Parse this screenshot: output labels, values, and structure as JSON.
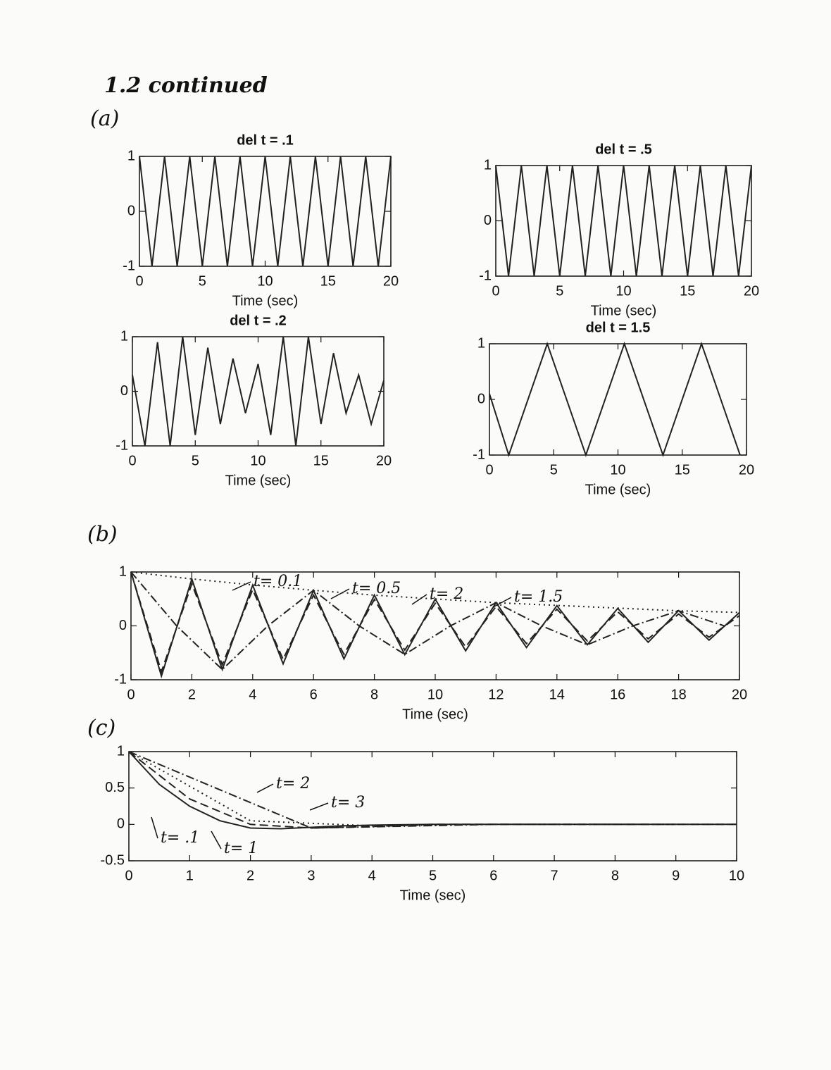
{
  "header": {
    "title": "1.2 continued"
  },
  "sections": [
    "(a)",
    "(b)",
    "(c)"
  ],
  "chart_data": [
    {
      "type": "line",
      "title": "del t = .1",
      "xlabel": "Time (sec)",
      "xlim": [
        0,
        20
      ],
      "ylim": [
        -1,
        1
      ],
      "xticks": [
        0,
        5,
        10,
        15,
        20
      ],
      "yticks": [
        -1,
        0,
        1
      ],
      "series": [
        {
          "style": "solid",
          "color": "#222222",
          "x": [
            0,
            0.5,
            1,
            1.5,
            2,
            2.5,
            3,
            3.5,
            4,
            4.5,
            5,
            5.5,
            6,
            6.5,
            7,
            7.5,
            8,
            8.5,
            9,
            9.5,
            10,
            10.5,
            11,
            11.5,
            12,
            12.5,
            13,
            13.5,
            14,
            14.5,
            15,
            15.5,
            16,
            16.5,
            17,
            17.5,
            18,
            18.5,
            19,
            19.5,
            20
          ],
          "values": [
            1,
            0,
            -1,
            0,
            1,
            0,
            -1,
            0,
            1,
            0,
            -1,
            0,
            1,
            0,
            -1,
            0,
            1,
            0,
            -1,
            0,
            1,
            0,
            -1,
            0,
            1,
            0,
            -1,
            0,
            1,
            0,
            -1,
            0,
            1,
            0,
            -1,
            0,
            1,
            0,
            -1,
            0,
            1
          ]
        }
      ]
    },
    {
      "type": "line",
      "title": "del t = .5",
      "xlabel": "Time (sec)",
      "xlim": [
        0,
        20
      ],
      "ylim": [
        -1,
        1
      ],
      "xticks": [
        0,
        5,
        10,
        15,
        20
      ],
      "yticks": [
        -1,
        0,
        1
      ],
      "series": [
        {
          "style": "solid",
          "color": "#222222",
          "x": [
            0,
            0.5,
            1,
            1.5,
            2,
            2.5,
            3,
            3.5,
            4,
            4.5,
            5,
            5.5,
            6,
            6.5,
            7,
            7.5,
            8,
            8.5,
            9,
            9.5,
            10,
            10.5,
            11,
            11.5,
            12,
            12.5,
            13,
            13.5,
            14,
            14.5,
            15,
            15.5,
            16,
            16.5,
            17,
            17.5,
            18,
            18.5,
            19,
            19.5,
            20
          ],
          "values": [
            1,
            0,
            -1,
            0,
            1,
            0,
            -1,
            0,
            1,
            0,
            -1,
            0,
            1,
            0,
            -1,
            0,
            1,
            0,
            -1,
            0,
            1,
            0,
            -1,
            0,
            1,
            0,
            -1,
            0,
            1,
            0,
            -1,
            0,
            1,
            0,
            -1,
            0,
            1,
            0,
            -1,
            0,
            1
          ]
        }
      ]
    },
    {
      "type": "line",
      "title": "del t = .2",
      "xlabel": "Time (sec)",
      "xlim": [
        0,
        20
      ],
      "ylim": [
        -1,
        1
      ],
      "xticks": [
        0,
        5,
        10,
        15,
        20
      ],
      "yticks": [
        -1,
        0,
        1
      ],
      "series": [
        {
          "style": "solid",
          "color": "#222222",
          "x": [
            0,
            1,
            2,
            3,
            4,
            5,
            6,
            7,
            8,
            9,
            10,
            11,
            12,
            13,
            14,
            15,
            16,
            17,
            18,
            19,
            20
          ],
          "values": [
            0.3,
            -1,
            0.9,
            -1,
            1,
            -0.8,
            0.8,
            -0.6,
            0.6,
            -0.4,
            0.5,
            -0.8,
            1,
            -1,
            1,
            -0.6,
            0.7,
            -0.4,
            0.3,
            -0.6,
            0.2
          ]
        }
      ]
    },
    {
      "type": "line",
      "title": "del t = 1.5",
      "xlabel": "Time (sec)",
      "xlim": [
        0,
        20
      ],
      "ylim": [
        -1,
        1
      ],
      "xticks": [
        0,
        5,
        10,
        15,
        20
      ],
      "yticks": [
        -1,
        0,
        1
      ],
      "series": [
        {
          "style": "solid",
          "color": "#222222",
          "x": [
            0,
            1.5,
            4.5,
            7.5,
            10.5,
            13.5,
            16.5,
            19.5
          ],
          "values": [
            0.1,
            -1,
            1,
            -1,
            1,
            -1,
            1,
            -1
          ]
        }
      ]
    },
    {
      "type": "line",
      "xlabel": "Time (sec)",
      "xlim": [
        0,
        20
      ],
      "ylim": [
        -1,
        1
      ],
      "xticks": [
        0,
        2,
        4,
        6,
        8,
        10,
        12,
        14,
        16,
        18,
        20
      ],
      "yticks": [
        -1,
        0,
        1
      ],
      "series": [
        {
          "name": "t= 0.1",
          "style": "solid",
          "color": "#222222",
          "x": [
            0,
            1,
            2,
            3,
            4,
            5,
            6,
            7,
            8,
            9,
            10,
            11,
            12,
            13,
            14,
            15,
            16,
            17,
            18,
            19,
            20
          ],
          "values": [
            1,
            -0.932,
            0.869,
            -0.811,
            0.756,
            -0.705,
            0.657,
            -0.613,
            0.571,
            -0.533,
            0.497,
            -0.463,
            0.432,
            -0.403,
            0.375,
            -0.35,
            0.326,
            -0.304,
            0.284,
            -0.264,
            0.247
          ]
        },
        {
          "name": "t= 0.5",
          "style": "dashed",
          "color": "#222222",
          "x": [
            0,
            1,
            2,
            3,
            4,
            5,
            6,
            7,
            8,
            9,
            10,
            11,
            12,
            13,
            14,
            15,
            16,
            17,
            18,
            19,
            20
          ],
          "values": [
            1,
            -0.85,
            0.78,
            -0.72,
            0.67,
            -0.62,
            0.57,
            -0.53,
            0.49,
            -0.45,
            0.42,
            -0.39,
            0.36,
            -0.33,
            0.31,
            -0.28,
            0.26,
            -0.24,
            0.22,
            -0.21,
            0.19
          ]
        },
        {
          "name": "t= 2",
          "style": "dotted",
          "color": "#222222",
          "x": [
            0,
            2,
            4,
            6,
            8,
            10,
            12,
            14,
            16,
            18,
            20
          ],
          "values": [
            1,
            0.87,
            0.76,
            0.66,
            0.57,
            0.5,
            0.43,
            0.38,
            0.33,
            0.28,
            0.25
          ]
        },
        {
          "name": "t= 1.5",
          "style": "dashdot",
          "color": "#222222",
          "x": [
            0,
            1.5,
            3,
            4.5,
            6,
            7.5,
            9,
            10.5,
            12,
            13.5,
            15,
            16.5,
            18,
            19.5
          ],
          "values": [
            1,
            0,
            -0.81,
            0,
            0.66,
            0,
            -0.53,
            0,
            0.43,
            0,
            -0.35,
            0,
            0.28,
            0
          ]
        }
      ]
    },
    {
      "type": "line",
      "xlabel": "Time (sec)",
      "xlim": [
        0,
        10
      ],
      "ylim": [
        -0.5,
        1
      ],
      "xticks": [
        0,
        1,
        2,
        3,
        4,
        5,
        6,
        7,
        8,
        9,
        10
      ],
      "yticks": [
        -0.5,
        0,
        0.5,
        1
      ],
      "series": [
        {
          "name": "t= .1",
          "style": "solid",
          "color": "#222222",
          "x": [
            0,
            0.5,
            1,
            1.5,
            2,
            2.5,
            3,
            3.5,
            4,
            5,
            6,
            7,
            8,
            9,
            10
          ],
          "values": [
            1,
            0.55,
            0.25,
            0.05,
            -0.05,
            -0.06,
            -0.04,
            -0.02,
            -0.01,
            0,
            0,
            0,
            0,
            0,
            0
          ]
        },
        {
          "name": "t= 1",
          "style": "dashed",
          "color": "#222222",
          "x": [
            0,
            1,
            2,
            3,
            4,
            5,
            6,
            7,
            8,
            9,
            10
          ],
          "values": [
            1,
            0.35,
            0,
            -0.05,
            -0.03,
            0,
            0,
            0,
            0,
            0,
            0
          ]
        },
        {
          "name": "t= 2",
          "style": "dotted",
          "color": "#222222",
          "x": [
            0,
            2,
            4,
            6,
            8,
            10
          ],
          "values": [
            1,
            0.05,
            -0.02,
            0,
            0,
            0
          ]
        },
        {
          "name": "t= 3",
          "style": "dashdot",
          "color": "#222222",
          "x": [
            0,
            3,
            6,
            9
          ],
          "values": [
            1,
            -0.05,
            0,
            0
          ]
        }
      ]
    }
  ]
}
